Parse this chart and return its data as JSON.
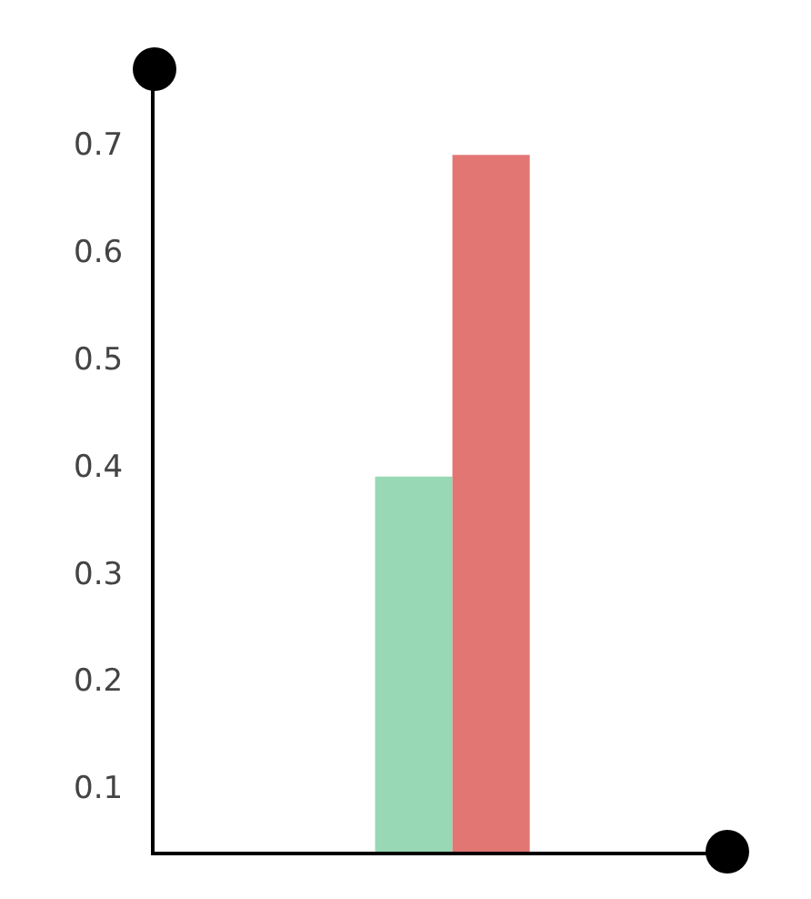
{
  "chart_data": {
    "type": "bar",
    "categories": [
      null
    ],
    "series": [
      {
        "color": "#98d8b4",
        "values": [
          0.39
        ]
      },
      {
        "color": "#e27673",
        "values": [
          0.69
        ]
      }
    ],
    "ylim": [
      0.04,
      0.77
    ],
    "yticks": [
      0.1,
      0.2,
      0.3,
      0.4,
      0.5,
      0.6,
      0.7
    ],
    "grid": false,
    "tick_labels": "y"
  }
}
